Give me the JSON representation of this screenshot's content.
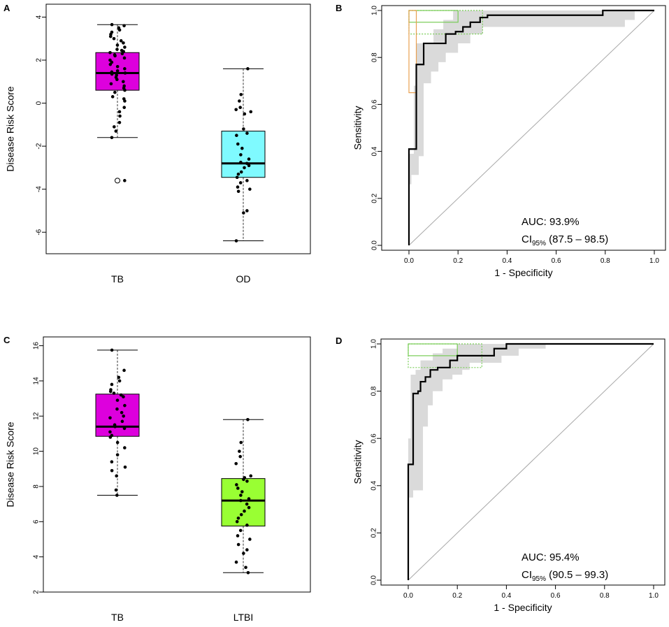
{
  "chart_data": [
    {
      "panel": "A",
      "type": "boxplot",
      "ylabel": "Disease Risk Score",
      "ylim": [
        -7,
        4.6
      ],
      "yticks": [
        -6,
        -4,
        -2,
        0,
        2,
        4
      ],
      "groups": [
        {
          "name": "TB",
          "color": "#dd00dd",
          "whisker_low": -1.6,
          "q1": 0.6,
          "median": 1.4,
          "q3": 2.35,
          "whisker_high": 3.65,
          "outliers": [
            -3.6
          ],
          "points": [
            3.65,
            3.6,
            3.5,
            3.4,
            3.3,
            3.2,
            3.1,
            3.0,
            2.9,
            2.8,
            2.7,
            2.6,
            2.5,
            2.45,
            2.4,
            2.35,
            2.3,
            2.25,
            2.2,
            2.1,
            2.0,
            1.9,
            1.8,
            1.7,
            1.6,
            1.5,
            1.45,
            1.4,
            1.35,
            1.3,
            1.2,
            1.1,
            1.0,
            0.9,
            0.8,
            0.7,
            0.6,
            0.5,
            0.3,
            0.2,
            0.1,
            -0.2,
            -0.4,
            -0.6,
            -0.9,
            -1.1,
            -1.3,
            -1.6,
            -3.6
          ]
        },
        {
          "name": "OD",
          "color": "#7ffaff",
          "whisker_low": -6.4,
          "q1": -3.45,
          "median": -2.8,
          "q3": -1.3,
          "whisker_high": 1.6,
          "outliers": [],
          "points": [
            1.6,
            0.4,
            0.1,
            -0.2,
            -0.3,
            -0.4,
            -0.5,
            -1.2,
            -1.4,
            -1.5,
            -1.9,
            -2.1,
            -2.4,
            -2.6,
            -2.75,
            -2.8,
            -2.9,
            -3.0,
            -3.2,
            -3.3,
            -3.45,
            -3.6,
            -3.7,
            -3.9,
            -4.0,
            -4.1,
            -5.0,
            -5.1,
            -6.4
          ]
        }
      ]
    },
    {
      "panel": "B",
      "type": "roc",
      "xlabel": "1 - Specificity",
      "ylabel": "Sensitivity",
      "xlim": [
        0,
        1
      ],
      "ylim": [
        0,
        1
      ],
      "ticks": [
        0.0,
        0.2,
        0.4,
        0.6,
        0.8,
        1.0
      ],
      "auc_label": "AUC: 93.9%",
      "ci_prefix": "CI",
      "ci_sub": "95%",
      "ci_value": "(87.5 – 98.5)",
      "curve": [
        [
          0,
          0
        ],
        [
          0,
          0.41
        ],
        [
          0.03,
          0.41
        ],
        [
          0.03,
          0.77
        ],
        [
          0.06,
          0.77
        ],
        [
          0.06,
          0.86
        ],
        [
          0.15,
          0.86
        ],
        [
          0.15,
          0.9
        ],
        [
          0.19,
          0.9
        ],
        [
          0.19,
          0.91
        ],
        [
          0.22,
          0.91
        ],
        [
          0.22,
          0.93
        ],
        [
          0.25,
          0.93
        ],
        [
          0.25,
          0.95
        ],
        [
          0.29,
          0.95
        ],
        [
          0.29,
          0.97
        ],
        [
          0.32,
          0.97
        ],
        [
          0.32,
          0.98
        ],
        [
          0.79,
          0.98
        ],
        [
          0.79,
          1.0
        ],
        [
          1.0,
          1.0
        ]
      ],
      "ci_upper": [
        [
          0,
          0.39
        ],
        [
          0.02,
          0.39
        ],
        [
          0.02,
          0.68
        ],
        [
          0.03,
          0.68
        ],
        [
          0.03,
          0.86
        ],
        [
          0.1,
          0.86
        ],
        [
          0.1,
          0.92
        ],
        [
          0.14,
          0.92
        ],
        [
          0.14,
          0.96
        ],
        [
          0.18,
          0.96
        ],
        [
          0.18,
          1.0
        ],
        [
          1.0,
          1.0
        ]
      ],
      "ci_lower": [
        [
          1.0,
          1.0
        ],
        [
          0.92,
          1.0
        ],
        [
          0.92,
          0.96
        ],
        [
          0.88,
          0.96
        ],
        [
          0.88,
          0.93
        ],
        [
          0.68,
          0.93
        ],
        [
          0.3,
          0.93
        ],
        [
          0.3,
          0.9
        ],
        [
          0.25,
          0.9
        ],
        [
          0.25,
          0.86
        ],
        [
          0.2,
          0.86
        ],
        [
          0.2,
          0.82
        ],
        [
          0.15,
          0.82
        ],
        [
          0.15,
          0.78
        ],
        [
          0.12,
          0.78
        ],
        [
          0.12,
          0.74
        ],
        [
          0.09,
          0.74
        ],
        [
          0.09,
          0.69
        ],
        [
          0.06,
          0.69
        ],
        [
          0.06,
          0.38
        ],
        [
          0.04,
          0.38
        ],
        [
          0.04,
          0.3
        ],
        [
          0.01,
          0.3
        ],
        [
          0.01,
          0.26
        ],
        [
          0,
          0.26
        ]
      ],
      "rects": [
        {
          "x0": 0.0,
          "x1": 0.2,
          "y0": 0.95,
          "y1": 1.0,
          "color": "#77cc55",
          "dashed": false
        },
        {
          "x0": 0.0,
          "x1": 0.3,
          "y0": 0.9,
          "y1": 1.0,
          "color": "#77cc55",
          "dashed": true
        },
        {
          "x0": 0.0,
          "x1": 0.03,
          "y0": 0.65,
          "y1": 1.0,
          "color": "#e8a050",
          "dashed": false
        }
      ]
    },
    {
      "panel": "C",
      "type": "boxplot",
      "ylabel": "Disease Risk Score",
      "ylim": [
        2,
        16.5
      ],
      "yticks": [
        2,
        4,
        6,
        8,
        10,
        12,
        14,
        16
      ],
      "groups": [
        {
          "name": "TB",
          "color": "#dd00dd",
          "whisker_low": 7.5,
          "q1": 10.85,
          "median": 11.4,
          "q3": 13.25,
          "whisker_high": 15.75,
          "outliers": [],
          "points": [
            15.75,
            14.6,
            14.2,
            14.0,
            13.8,
            13.5,
            13.4,
            13.3,
            13.2,
            13.1,
            12.9,
            12.6,
            12.4,
            12.2,
            12.0,
            11.9,
            11.7,
            11.5,
            11.4,
            11.3,
            11.1,
            10.9,
            10.8,
            10.5,
            10.2,
            9.8,
            9.4,
            9.1,
            8.9,
            8.6,
            7.8,
            7.5
          ]
        },
        {
          "name": "LTBI",
          "color": "#99ff33",
          "whisker_low": 3.1,
          "q1": 5.75,
          "median": 7.2,
          "q3": 8.45,
          "whisker_high": 11.8,
          "outliers": [],
          "points": [
            11.8,
            10.5,
            10.0,
            9.7,
            9.3,
            8.6,
            8.5,
            8.4,
            8.3,
            8.1,
            7.9,
            7.7,
            7.5,
            7.3,
            7.2,
            7.0,
            6.8,
            6.6,
            6.4,
            6.2,
            6.0,
            5.8,
            5.5,
            5.2,
            5.0,
            4.7,
            4.4,
            4.2,
            3.7,
            3.4,
            3.1
          ]
        }
      ]
    },
    {
      "panel": "D",
      "type": "roc",
      "xlabel": "1 - Specificity",
      "ylabel": "Sensitivity",
      "xlim": [
        0,
        1
      ],
      "ylim": [
        0,
        1
      ],
      "ticks": [
        0.0,
        0.2,
        0.4,
        0.6,
        0.8,
        1.0
      ],
      "auc_label": "AUC: 95.4%",
      "ci_prefix": "CI",
      "ci_sub": "95%",
      "ci_value": "(90.5 – 99.3)",
      "curve": [
        [
          0,
          0
        ],
        [
          0,
          0.49
        ],
        [
          0.02,
          0.49
        ],
        [
          0.02,
          0.79
        ],
        [
          0.04,
          0.79
        ],
        [
          0.04,
          0.8
        ],
        [
          0.05,
          0.8
        ],
        [
          0.05,
          0.84
        ],
        [
          0.07,
          0.84
        ],
        [
          0.07,
          0.86
        ],
        [
          0.09,
          0.86
        ],
        [
          0.09,
          0.89
        ],
        [
          0.12,
          0.89
        ],
        [
          0.12,
          0.9
        ],
        [
          0.17,
          0.9
        ],
        [
          0.17,
          0.93
        ],
        [
          0.2,
          0.93
        ],
        [
          0.2,
          0.95
        ],
        [
          0.35,
          0.95
        ],
        [
          0.35,
          0.98
        ],
        [
          0.4,
          0.98
        ],
        [
          0.4,
          1.0
        ],
        [
          1.0,
          1.0
        ]
      ],
      "ci_upper": [
        [
          0,
          0.6
        ],
        [
          0.01,
          0.6
        ],
        [
          0.01,
          0.87
        ],
        [
          0.03,
          0.87
        ],
        [
          0.03,
          0.89
        ],
        [
          0.05,
          0.89
        ],
        [
          0.05,
          0.93
        ],
        [
          0.1,
          0.93
        ],
        [
          0.1,
          0.96
        ],
        [
          0.14,
          0.96
        ],
        [
          0.14,
          0.98
        ],
        [
          0.2,
          0.98
        ],
        [
          0.2,
          1.0
        ],
        [
          1.0,
          1.0
        ]
      ],
      "ci_lower": [
        [
          1.0,
          1.0
        ],
        [
          0.56,
          1.0
        ],
        [
          0.56,
          0.98
        ],
        [
          0.45,
          0.98
        ],
        [
          0.45,
          0.95
        ],
        [
          0.38,
          0.95
        ],
        [
          0.38,
          0.92
        ],
        [
          0.3,
          0.92
        ],
        [
          0.25,
          0.92
        ],
        [
          0.25,
          0.89
        ],
        [
          0.22,
          0.89
        ],
        [
          0.22,
          0.87
        ],
        [
          0.18,
          0.87
        ],
        [
          0.18,
          0.85
        ],
        [
          0.14,
          0.85
        ],
        [
          0.14,
          0.8
        ],
        [
          0.1,
          0.8
        ],
        [
          0.1,
          0.74
        ],
        [
          0.08,
          0.74
        ],
        [
          0.08,
          0.65
        ],
        [
          0.06,
          0.65
        ],
        [
          0.06,
          0.38
        ],
        [
          0.02,
          0.38
        ],
        [
          0.02,
          0.35
        ],
        [
          0,
          0.35
        ]
      ],
      "rects": [
        {
          "x0": 0.0,
          "x1": 0.2,
          "y0": 0.95,
          "y1": 1.0,
          "color": "#77cc55",
          "dashed": false
        },
        {
          "x0": 0.0,
          "x1": 0.3,
          "y0": 0.9,
          "y1": 1.0,
          "color": "#77cc55",
          "dashed": true
        }
      ]
    }
  ]
}
